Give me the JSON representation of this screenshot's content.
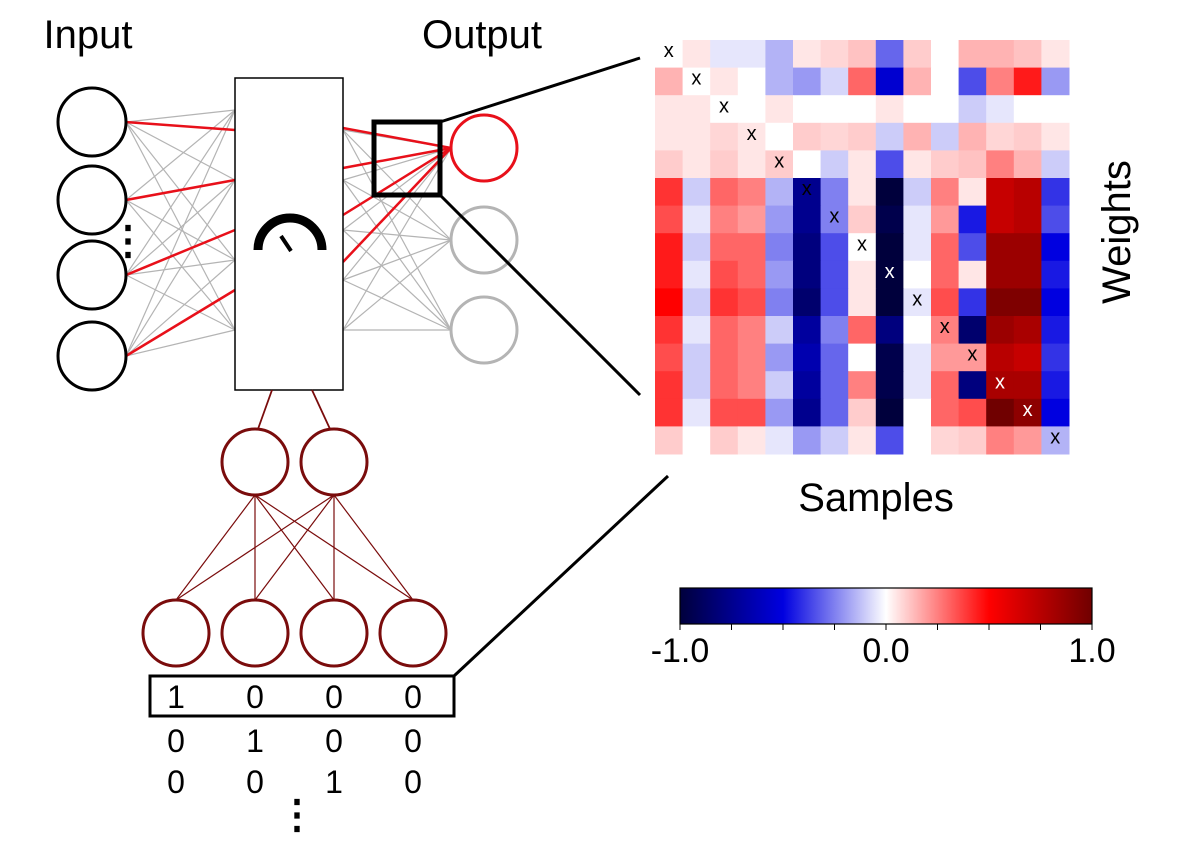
{
  "labels": {
    "input": "Input",
    "output": "Output",
    "weights_axis": "Weights",
    "samples_axis": "Samples",
    "vdots": "⋮"
  },
  "colorbar": {
    "min_label": "-1.0",
    "mid_label": "0.0",
    "max_label": "1.0",
    "stops": [
      "#00003c",
      "#0000e0",
      "#ffffff",
      "#ff0000",
      "#700000"
    ]
  },
  "colors": {
    "active_line": "#e8101a",
    "inactive_line": "#b4b4b4",
    "embedding": "#7a0c0c",
    "text": "#000000"
  },
  "one_hot_rows": [
    [
      "1",
      "0",
      "0",
      "0"
    ],
    [
      "0",
      "1",
      "0",
      "0"
    ],
    [
      "0",
      "0",
      "1",
      "0"
    ]
  ],
  "diag_marker": "x",
  "heatmap": {
    "rows": [
      [
        0,
        0.05,
        -0.05,
        -0.05,
        -0.15,
        0.05,
        0.08,
        0.12,
        -0.3,
        0.1,
        0,
        0.15,
        0.15,
        0.12,
        0.05
      ],
      [
        0.15,
        0,
        0.05,
        0,
        -0.15,
        -0.2,
        -0.08,
        0.3,
        -0.55,
        0.15,
        0,
        -0.35,
        0.25,
        0.45,
        -0.2
      ],
      [
        0.05,
        0.05,
        0,
        0,
        0.05,
        0,
        0,
        0,
        0.05,
        0,
        0,
        -0.1,
        -0.05,
        0,
        0
      ],
      [
        0.05,
        0.05,
        0.08,
        0.05,
        0,
        0.1,
        0.08,
        0.1,
        -0.1,
        0.15,
        -0.1,
        0.15,
        0.08,
        0.1,
        0.05
      ],
      [
        0.1,
        0.05,
        0.1,
        0.05,
        0.1,
        0,
        -0.1,
        0.05,
        -0.35,
        0.05,
        0.1,
        0.12,
        0.25,
        0.15,
        -0.1
      ],
      [
        0.4,
        -0.1,
        0.3,
        0.25,
        -0.15,
        -0.75,
        -0.25,
        0.05,
        -1.0,
        -0.1,
        0.25,
        0.05,
        0.7,
        0.75,
        -0.4
      ],
      [
        0.35,
        -0.05,
        0.25,
        0.2,
        -0.2,
        -0.75,
        -0.25,
        0.1,
        -0.95,
        -0.05,
        0.2,
        -0.45,
        0.7,
        0.75,
        -0.35
      ],
      [
        0.45,
        -0.1,
        0.3,
        0.3,
        -0.25,
        -0.8,
        -0.35,
        0,
        -1.0,
        -0.05,
        0.3,
        -0.35,
        0.85,
        0.85,
        -0.5
      ],
      [
        0.45,
        -0.05,
        0.35,
        0.3,
        -0.2,
        -0.8,
        -0.35,
        0.05,
        -1.0,
        0,
        0.3,
        0.05,
        0.85,
        0.85,
        -0.45
      ],
      [
        0.5,
        -0.1,
        0.4,
        0.35,
        -0.25,
        -0.85,
        -0.35,
        0.05,
        -1.0,
        -0.05,
        0.35,
        -0.4,
        0.95,
        0.95,
        -0.5
      ],
      [
        0.4,
        -0.05,
        0.3,
        0.25,
        -0.1,
        -0.7,
        -0.25,
        0.3,
        -0.8,
        0,
        0.25,
        -0.85,
        0.85,
        0.8,
        -0.45
      ],
      [
        0.35,
        -0.1,
        0.3,
        0.25,
        -0.2,
        -0.65,
        -0.3,
        0,
        -0.95,
        -0.05,
        0.2,
        0.2,
        0.75,
        0.7,
        -0.4
      ],
      [
        0.4,
        -0.1,
        0.3,
        0.25,
        -0.1,
        -0.7,
        -0.3,
        0.25,
        -0.95,
        -0.05,
        0.3,
        -0.8,
        0.8,
        0.8,
        -0.45
      ],
      [
        0.4,
        -0.05,
        0.35,
        0.35,
        -0.2,
        -0.75,
        -0.3,
        0.1,
        -1.0,
        0,
        0.3,
        0.35,
        1.0,
        0.9,
        -0.5
      ],
      [
        0.1,
        0,
        0.1,
        0.05,
        -0.05,
        -0.2,
        -0.1,
        0.05,
        -0.35,
        0,
        0.08,
        0.1,
        0.25,
        0.2,
        -0.15
      ]
    ]
  }
}
